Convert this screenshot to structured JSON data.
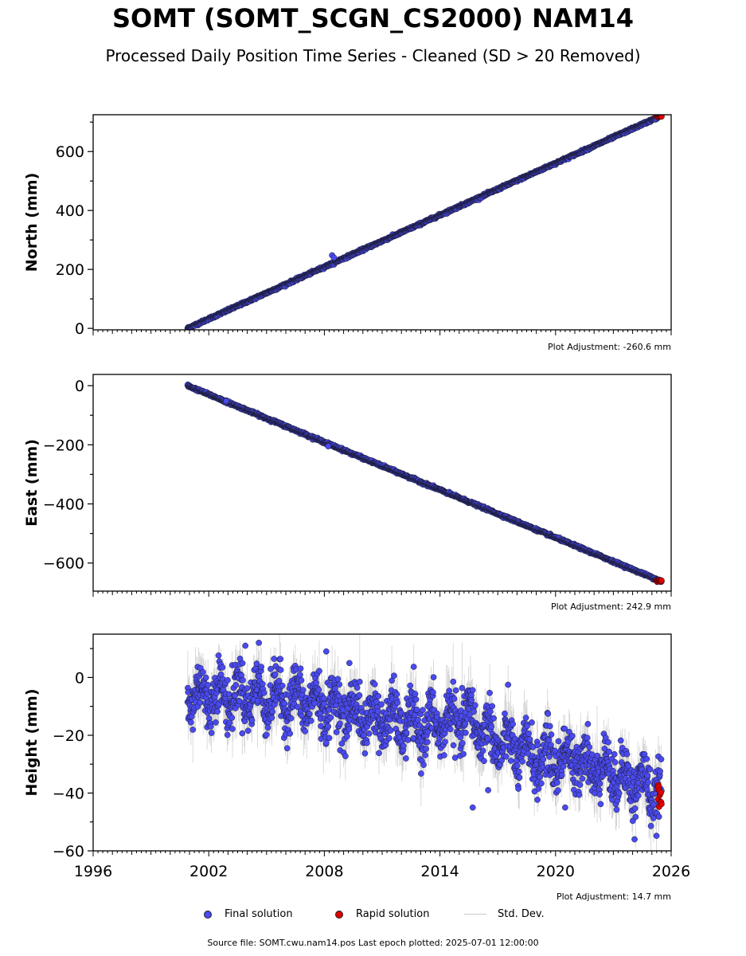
{
  "title": "SOMT (SOMT_SCGN_CS2000) NAM14",
  "subtitle": "Processed Daily Position Time Series - Cleaned (SD > 20 Removed)",
  "colors": {
    "final": "#4a4af0",
    "rapid": "#e00000",
    "stddev": "#c8c8c8"
  },
  "legend": {
    "final": "Final solution",
    "rapid": "Rapid solution",
    "stddev": "Std. Dev."
  },
  "footer": {
    "source": "Source file: SOMT.cwu.nam14.pos  Last epoch plotted: 2025-07-01 12:00:00"
  },
  "chart_data": [
    {
      "type": "scatter",
      "ylabel": "North (mm)",
      "adjustment": "Plot Adjustment: -260.6 mm",
      "xlim": [
        1996,
        2026
      ],
      "ylim": [
        -5,
        725
      ],
      "yticks": [
        0,
        200,
        400,
        600
      ],
      "yticklabels": [
        "0",
        "200",
        "400",
        "600"
      ],
      "data_span": [
        2000.9,
        2025.5
      ],
      "trend": {
        "start": [
          2000.9,
          0
        ],
        "end": [
          2025.5,
          722
        ]
      },
      "scatter_sd": 2,
      "outliers": [
        [
          2008.4,
          248
        ],
        [
          2008.5,
          240
        ]
      ],
      "rapid": {
        "x_range": [
          2025.25,
          2025.5
        ],
        "y_range": [
          718,
          724
        ]
      }
    },
    {
      "type": "scatter",
      "ylabel": "East (mm)",
      "adjustment": "Plot Adjustment: 242.9 mm",
      "xlim": [
        1996,
        2026
      ],
      "ylim": [
        -695,
        38
      ],
      "yticks": [
        -600,
        -400,
        -200,
        0
      ],
      "yticklabels": [
        "−600",
        "−400",
        "−200",
        "0"
      ],
      "data_span": [
        2000.9,
        2025.5
      ],
      "trend": {
        "start": [
          2000.9,
          0
        ],
        "end": [
          2025.5,
          -662
        ]
      },
      "scatter_sd": 2,
      "outliers": [
        [
          2002.9,
          -52
        ],
        [
          2008.2,
          -205
        ]
      ],
      "rapid": {
        "x_range": [
          2025.25,
          2025.5
        ],
        "y_range": [
          -664,
          -658
        ]
      }
    },
    {
      "type": "scatter",
      "ylabel": "Height (mm)",
      "adjustment": "Plot Adjustment: 14.7 mm",
      "xlim": [
        1996,
        2026
      ],
      "ylim": [
        -60,
        15
      ],
      "yticks": [
        -60,
        -40,
        -20,
        0
      ],
      "yticklabels": [
        "−60",
        "−40",
        "−20",
        "0"
      ],
      "xticks": [
        1996,
        2002,
        2008,
        2014,
        2020,
        2026
      ],
      "xticklabels": [
        "1996",
        "2002",
        "2008",
        "2014",
        "2020",
        "2026"
      ],
      "data_span": [
        2000.9,
        2025.5
      ],
      "trend_points": [
        [
          2000.9,
          -6
        ],
        [
          2004,
          -6
        ],
        [
          2007,
          -8
        ],
        [
          2010,
          -13
        ],
        [
          2013,
          -17
        ],
        [
          2015.5,
          -14
        ],
        [
          2017,
          -22
        ],
        [
          2019,
          -28
        ],
        [
          2021,
          -28
        ],
        [
          2023,
          -33
        ],
        [
          2025.5,
          -40
        ]
      ],
      "seasonal_amplitude": 5,
      "scatter_sd": 4.5,
      "outliers": [
        [
          2003.9,
          11
        ],
        [
          2004.6,
          12
        ],
        [
          2008.1,
          9
        ],
        [
          2009.3,
          5
        ],
        [
          2015.7,
          -45
        ],
        [
          2016.5,
          -39
        ],
        [
          2020.5,
          -45
        ],
        [
          2024.1,
          -56
        ]
      ],
      "rapid": {
        "x_range": [
          2025.3,
          2025.5
        ],
        "y_range": [
          -45,
          -37
        ]
      }
    }
  ]
}
